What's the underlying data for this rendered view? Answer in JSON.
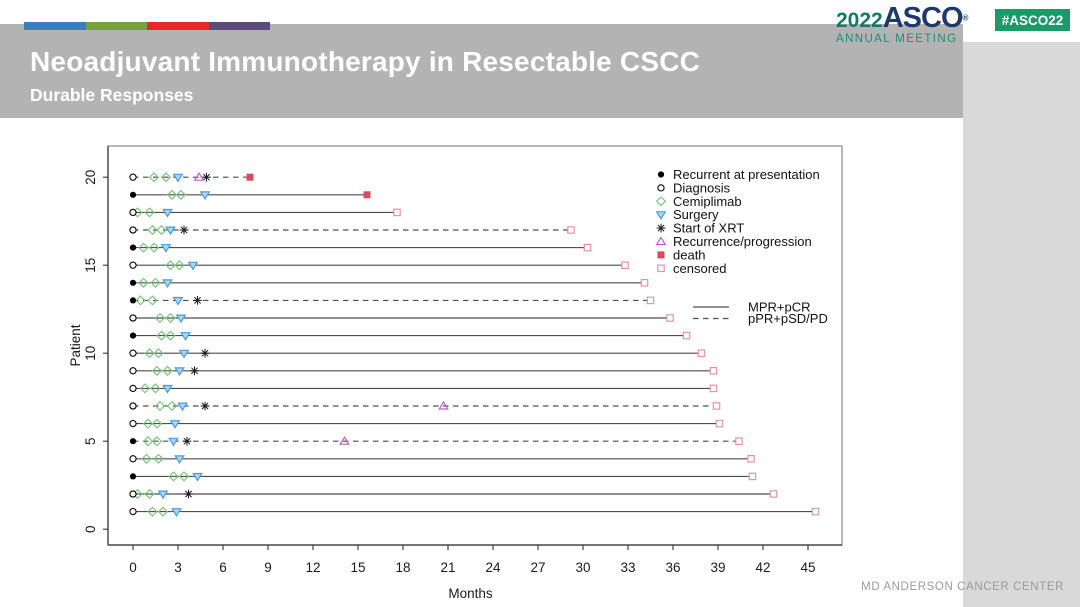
{
  "header": {
    "title": "Neoadjuvant Immunotherapy in Resectable CSCC",
    "subtitle": "Durable Responses",
    "band_color": "#b3b3b3",
    "bar_colors": [
      "#3e7cbf",
      "#76a240",
      "#e32a28",
      "#5d4b7e"
    ]
  },
  "logo": {
    "year": "2022",
    "acronym": "ASCO",
    "reg": "®",
    "subtitle": "ANNUAL MEETING",
    "year_color": "#157a66",
    "acronym_color": "#1e3a6d",
    "subtitle_color": "#1d8f77"
  },
  "badge": {
    "label": "#ASCO22",
    "bg_color": "#199a68"
  },
  "sidebar": {
    "color": "#d9d9d9"
  },
  "footer": {
    "text": "MD ANDERSON CANCER CENTER",
    "color": "#9b9b9b"
  },
  "chart_data": {
    "type": "swimmer",
    "xlabel": "Months",
    "ylabel": "Patient",
    "xlim": [
      0,
      46.5
    ],
    "ylim": [
      0,
      21
    ],
    "x_ticks": [
      0,
      3,
      6,
      9,
      12,
      15,
      18,
      21,
      24,
      27,
      30,
      33,
      36,
      39,
      42,
      45
    ],
    "y_ticks": [
      0,
      5,
      10,
      15,
      20
    ],
    "grid": false,
    "line_color": "#4d4d4d",
    "box_color": "#888888",
    "axis_color": "#333333",
    "legend": {
      "position": "top-right-inside",
      "markers": [
        {
          "label": "Recurrent at presentation",
          "symbol": "circle-filled",
          "color": "#000000"
        },
        {
          "label": "Diagnosis",
          "symbol": "circle-open",
          "color": "#000000"
        },
        {
          "label": "Cemiplimab",
          "symbol": "diamond-open",
          "color": "#7cc67c"
        },
        {
          "label": "Surgery",
          "symbol": "triangle-down",
          "color": "#4f9bd5",
          "fill": "#a8d8f0"
        },
        {
          "label": "Start of XRT",
          "symbol": "asterisk",
          "color": "#1a1a1a"
        },
        {
          "label": "Recurrence/progression",
          "symbol": "triangle-up-open",
          "color": "#c35fc3"
        },
        {
          "label": "death",
          "symbol": "square-filled",
          "color": "#d9495f"
        },
        {
          "label": "censored",
          "symbol": "square-open",
          "color": "#e295a2"
        }
      ],
      "lines": [
        {
          "label": "MPR+pCR",
          "style": "solid"
        },
        {
          "label": "pPR+pSD/PD",
          "style": "dashed"
        }
      ]
    },
    "patients": [
      {
        "id": 20,
        "response": "pPR+pSD/PD",
        "line": "dashed",
        "start": "diagnosis",
        "cemiplimab": [
          1.4,
          2.2
        ],
        "surgery": 3.0,
        "xrt": 4.9,
        "recurrence": 4.4,
        "end": 7.8,
        "end_event": "death"
      },
      {
        "id": 19,
        "response": "MPR+pCR",
        "line": "solid",
        "start": "recurrent",
        "cemiplimab": [
          2.6,
          3.2
        ],
        "surgery": 4.8,
        "xrt": null,
        "recurrence": null,
        "end": 15.6,
        "end_event": "death"
      },
      {
        "id": 18,
        "response": "MPR+pCR",
        "line": "solid",
        "start": "diagnosis",
        "cemiplimab": [
          0.3,
          1.1
        ],
        "surgery": 2.3,
        "xrt": null,
        "recurrence": null,
        "end": 17.6,
        "end_event": "censored"
      },
      {
        "id": 17,
        "response": "pPR+pSD/PD",
        "line": "dashed",
        "start": "diagnosis",
        "cemiplimab": [
          1.3,
          1.9
        ],
        "surgery": 2.5,
        "xrt": 3.4,
        "recurrence": null,
        "end": 29.2,
        "end_event": "censored"
      },
      {
        "id": 16,
        "response": "MPR+pCR",
        "line": "solid",
        "start": "recurrent",
        "cemiplimab": [
          0.7,
          1.4
        ],
        "surgery": 2.2,
        "xrt": null,
        "recurrence": null,
        "end": 30.3,
        "end_event": "censored"
      },
      {
        "id": 15,
        "response": "MPR+pCR",
        "line": "solid",
        "start": "diagnosis",
        "cemiplimab": [
          2.5,
          3.1
        ],
        "surgery": 4.0,
        "xrt": null,
        "recurrence": null,
        "end": 32.8,
        "end_event": "censored"
      },
      {
        "id": 14,
        "response": "MPR+pCR",
        "line": "solid",
        "start": "recurrent",
        "cemiplimab": [
          0.7,
          1.5
        ],
        "surgery": 2.3,
        "xrt": null,
        "recurrence": null,
        "end": 34.1,
        "end_event": "censored"
      },
      {
        "id": 13,
        "response": "pPR+pSD/PD",
        "line": "dashed",
        "start": "recurrent",
        "cemiplimab": [
          0.5,
          1.3
        ],
        "surgery": 3.0,
        "xrt": 4.3,
        "recurrence": null,
        "end": 34.5,
        "end_event": "censored"
      },
      {
        "id": 12,
        "response": "MPR+pCR",
        "line": "solid",
        "start": "diagnosis",
        "cemiplimab": [
          1.8,
          2.5
        ],
        "surgery": 3.2,
        "xrt": null,
        "recurrence": null,
        "end": 35.8,
        "end_event": "censored"
      },
      {
        "id": 11,
        "response": "MPR+pCR",
        "line": "solid",
        "start": "recurrent",
        "cemiplimab": [
          1.9,
          2.5
        ],
        "surgery": 3.5,
        "xrt": null,
        "recurrence": null,
        "end": 36.9,
        "end_event": "censored"
      },
      {
        "id": 10,
        "response": "MPR+pCR",
        "line": "solid",
        "start": "diagnosis",
        "cemiplimab": [
          1.1,
          1.7
        ],
        "surgery": 3.4,
        "xrt": 4.8,
        "recurrence": null,
        "end": 37.9,
        "end_event": "censored"
      },
      {
        "id": 9,
        "response": "MPR+pCR",
        "line": "solid",
        "start": "diagnosis",
        "cemiplimab": [
          1.6,
          2.3
        ],
        "surgery": 3.1,
        "xrt": 4.1,
        "recurrence": null,
        "end": 38.7,
        "end_event": "censored"
      },
      {
        "id": 8,
        "response": "MPR+pCR",
        "line": "solid",
        "start": "diagnosis",
        "cemiplimab": [
          0.8,
          1.5
        ],
        "surgery": 2.3,
        "xrt": null,
        "recurrence": null,
        "end": 38.7,
        "end_event": "censored"
      },
      {
        "id": 7,
        "response": "pPR+pSD/PD",
        "line": "dashed",
        "start": "diagnosis",
        "cemiplimab": [
          1.8,
          2.6
        ],
        "surgery": 3.3,
        "xrt": 4.8,
        "recurrence": 20.7,
        "end": 38.9,
        "end_event": "censored"
      },
      {
        "id": 6,
        "response": "MPR+pCR",
        "line": "solid",
        "start": "diagnosis",
        "cemiplimab": [
          1.0,
          1.6
        ],
        "surgery": 2.8,
        "xrt": null,
        "recurrence": null,
        "end": 39.1,
        "end_event": "censored"
      },
      {
        "id": 5,
        "response": "pPR+pSD/PD",
        "line": "dashed",
        "start": "recurrent",
        "cemiplimab": [
          1.0,
          1.6
        ],
        "surgery": 2.7,
        "xrt": 3.6,
        "recurrence": 14.1,
        "end": 40.4,
        "end_event": "censored"
      },
      {
        "id": 4,
        "response": "MPR+pCR",
        "line": "solid",
        "start": "diagnosis",
        "cemiplimab": [
          0.9,
          1.7
        ],
        "surgery": 3.1,
        "xrt": null,
        "recurrence": null,
        "end": 41.2,
        "end_event": "censored"
      },
      {
        "id": 3,
        "response": "MPR+pCR",
        "line": "solid",
        "start": "recurrent",
        "cemiplimab": [
          2.7,
          3.4
        ],
        "surgery": 4.3,
        "xrt": null,
        "recurrence": null,
        "end": 41.3,
        "end_event": "censored"
      },
      {
        "id": 2,
        "response": "MPR+pCR",
        "line": "solid",
        "start": "diagnosis",
        "cemiplimab": [
          0.3,
          1.1
        ],
        "surgery": 2.0,
        "xrt": 3.7,
        "recurrence": null,
        "end": 42.7,
        "end_event": "censored"
      },
      {
        "id": 1,
        "response": "MPR+pCR",
        "line": "solid",
        "start": "diagnosis",
        "cemiplimab": [
          1.3,
          2.0
        ],
        "surgery": 2.9,
        "xrt": null,
        "recurrence": null,
        "end": 45.5,
        "end_event": "censored"
      }
    ]
  }
}
